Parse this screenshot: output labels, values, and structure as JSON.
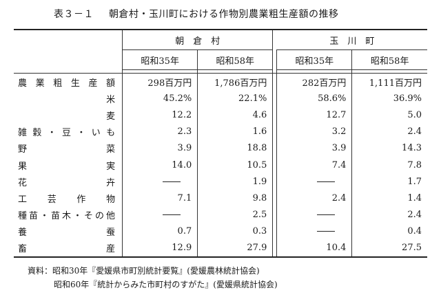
{
  "title": {
    "number": "表３－１",
    "text": "朝倉村・玉川町における作物別農業粗生産額の推移"
  },
  "columns": {
    "towns": [
      "朝　倉　村",
      "玉　川　町"
    ],
    "years": [
      "昭和35年",
      "昭和58年",
      "昭和35年",
      "昭和58年"
    ]
  },
  "rows": [
    {
      "label": [
        "農",
        "業",
        "粗",
        "生",
        "産",
        "額"
      ],
      "align": "justify",
      "values": [
        "298百万円",
        "1,786百万円",
        "282百万円",
        "1,111百万円"
      ]
    },
    {
      "label": [
        "米"
      ],
      "align": "right",
      "values": [
        "45.2%",
        "22.1%",
        "58.6%",
        "36.9%"
      ]
    },
    {
      "label": [
        "麦"
      ],
      "align": "right",
      "values": [
        "12.2",
        "4.6",
        "12.7",
        "5.0"
      ]
    },
    {
      "label": [
        "雑",
        "穀",
        "・",
        "豆",
        "・",
        "い",
        "も"
      ],
      "align": "justify",
      "values": [
        "2.3",
        "1.6",
        "3.2",
        "2.4"
      ]
    },
    {
      "label": [
        "野",
        "菜"
      ],
      "align": "justify",
      "values": [
        "3.9",
        "18.8",
        "3.9",
        "14.3"
      ]
    },
    {
      "label": [
        "果",
        "実"
      ],
      "align": "justify",
      "values": [
        "14.0",
        "10.5",
        "7.4",
        "7.8"
      ]
    },
    {
      "label": [
        "花",
        "卉"
      ],
      "align": "justify",
      "values": [
        "—",
        "1.9",
        "—",
        "1.7"
      ]
    },
    {
      "label": [
        "工",
        "芸",
        "作",
        "物"
      ],
      "align": "justify",
      "values": [
        "7.1",
        "9.8",
        "2.4",
        "1.4"
      ]
    },
    {
      "label": [
        "種",
        "苗",
        "・",
        "苗",
        "木",
        "・",
        "そ",
        "の",
        "他"
      ],
      "align": "justify",
      "values": [
        "—",
        "2.5",
        "—",
        "2.4"
      ]
    },
    {
      "label": [
        "養",
        "蚕"
      ],
      "align": "justify",
      "values": [
        "0.7",
        "0.3",
        "—",
        "0.4"
      ]
    },
    {
      "label": [
        "畜",
        "産"
      ],
      "align": "justify",
      "values": [
        "12.9",
        "27.9",
        "10.4",
        "27.5"
      ]
    }
  ],
  "source": {
    "line1": "資料：昭和30年『愛媛県市町別統計要覧』(愛媛農林統計協会)",
    "line2": "昭和60年『統計からみた市町村のすがた』(愛媛県統計協会)"
  }
}
